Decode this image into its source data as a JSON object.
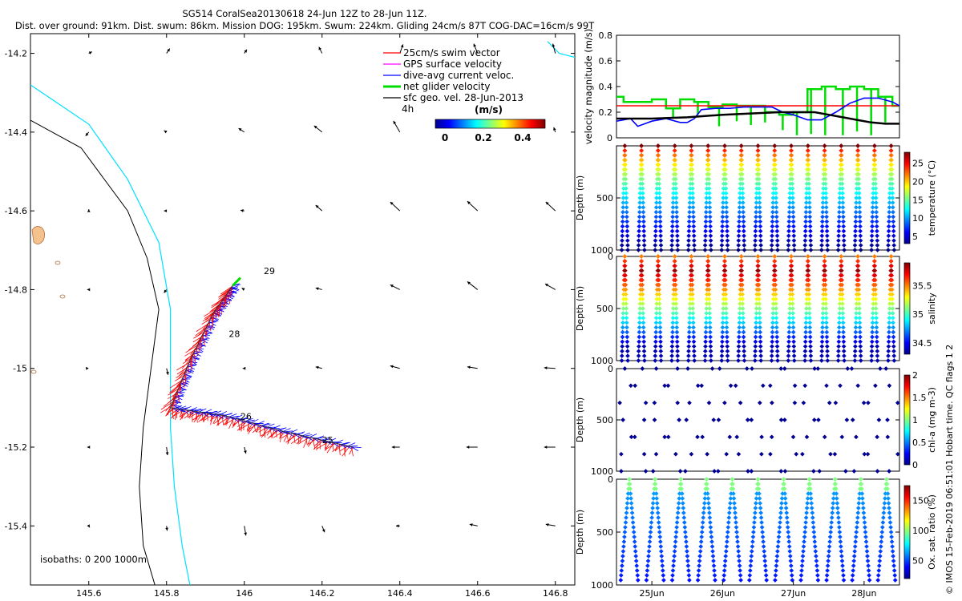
{
  "header": {
    "title": "SG514 CoralSea20130618 24-Jun 12Z to 28-Jun 11Z.",
    "subtitle": "Dist. over ground: 91km. Dist. swum: 86km. Mission DOG: 195km. Swum: 224km. Gliding 24cm/s 87T COG-DAC=16cm/s 99T"
  },
  "credit": "© IMOS 15-Feb-2019 06:51:01 Hobart time. QC flags 1 2",
  "colors": {
    "swim": "#ff0000",
    "gps": "#ff00ff",
    "dac": "#0000ff",
    "net": "#00dd00",
    "geo": "#000000",
    "coast": "#00e0ff"
  },
  "chart_data": [
    {
      "type": "scatter",
      "name": "track-map",
      "xlim": [
        145.45,
        146.85
      ],
      "ylim": [
        -15.55,
        -14.15
      ],
      "x_ticks": [
        145.6,
        145.8,
        146,
        146.2,
        146.4,
        146.6,
        146.8
      ],
      "x_tick_labels": [
        "145.6",
        "145.8",
        "146",
        "146.2",
        "146.4",
        "146.6",
        "146.8"
      ],
      "y_ticks": [
        -14.2,
        -14.4,
        -14.6,
        -14.8,
        -15.0,
        -15.2,
        -15.4
      ],
      "y_tick_labels": [
        "-14.2",
        "-14.4",
        "-14.6",
        "-14.8",
        "-15",
        "-15.2",
        "-15.4"
      ],
      "legend": {
        "placement": "top-right",
        "entries": [
          "25cm/s swim vector",
          "GPS surface velocity",
          "dive-avg current veloc.",
          "net glider velocity",
          "sfc geo. vel. 28-Jun-2013"
        ],
        "time_label": "4h",
        "colorbar_title": "(m/s)",
        "colorbar_ticks": [
          "0",
          "0.2",
          "0.4"
        ]
      },
      "isobath_label": "isobaths: 0   200  1000m",
      "day_labels": [
        {
          "text": "29",
          "lon": 146.05,
          "lat": -14.76
        },
        {
          "text": "28",
          "lon": 145.96,
          "lat": -14.92
        },
        {
          "text": "26",
          "lon": 145.99,
          "lat": -15.13
        },
        {
          "text": "25",
          "lon": 146.2,
          "lat": -15.19
        }
      ],
      "track": [
        [
          146.28,
          -15.2
        ],
        [
          146.1,
          -15.16
        ],
        [
          145.95,
          -15.12
        ],
        [
          145.81,
          -15.1
        ],
        [
          145.86,
          -14.98
        ],
        [
          145.92,
          -14.86
        ],
        [
          145.97,
          -14.79
        ]
      ],
      "net_velocity_tip": [
        [
          145.97,
          -14.79
        ],
        [
          145.99,
          -14.77
        ]
      ],
      "coast_1000m": [
        [
          145.45,
          -14.37
        ],
        [
          145.58,
          -14.44
        ],
        [
          145.7,
          -14.6
        ],
        [
          145.75,
          -14.72
        ],
        [
          145.78,
          -14.85
        ],
        [
          145.76,
          -15.0
        ],
        [
          145.74,
          -15.15
        ],
        [
          145.73,
          -15.3
        ],
        [
          145.74,
          -15.45
        ],
        [
          145.77,
          -15.55
        ]
      ],
      "coast_0m": [
        [
          145.45,
          -14.28
        ],
        [
          145.6,
          -14.38
        ],
        [
          145.7,
          -14.52
        ],
        [
          145.78,
          -14.68
        ],
        [
          145.81,
          -14.85
        ],
        [
          145.81,
          -15.0
        ],
        [
          145.81,
          -15.15
        ],
        [
          145.82,
          -15.3
        ],
        [
          145.84,
          -15.45
        ],
        [
          145.86,
          -15.55
        ]
      ],
      "coast_ne": [
        [
          146.78,
          -14.17
        ],
        [
          146.81,
          -14.2
        ],
        [
          146.85,
          -14.21
        ]
      ],
      "geo_vectors": [
        {
          "lon": 145.6,
          "lat": -14.2,
          "u": 0.1,
          "v": 0.05
        },
        {
          "lon": 145.8,
          "lat": -14.2,
          "u": 0.1,
          "v": 0.15
        },
        {
          "lon": 146.0,
          "lat": -14.2,
          "u": 0.08,
          "v": 0.12
        },
        {
          "lon": 146.2,
          "lat": -14.2,
          "u": -0.1,
          "v": 0.2
        },
        {
          "lon": 146.4,
          "lat": -14.2,
          "u": 0.1,
          "v": 0.28
        },
        {
          "lon": 146.6,
          "lat": -14.2,
          "u": -0.12,
          "v": 0.3
        },
        {
          "lon": 146.8,
          "lat": -14.2,
          "u": -0.08,
          "v": 0.3
        },
        {
          "lon": 145.6,
          "lat": -14.4,
          "u": -0.1,
          "v": -0.12
        },
        {
          "lon": 145.8,
          "lat": -14.4,
          "u": -0.08,
          "v": 0.05
        },
        {
          "lon": 146.0,
          "lat": -14.4,
          "u": -0.18,
          "v": 0.12
        },
        {
          "lon": 146.2,
          "lat": -14.4,
          "u": -0.25,
          "v": 0.2
        },
        {
          "lon": 146.4,
          "lat": -14.4,
          "u": -0.2,
          "v": 0.35
        },
        {
          "lon": 146.8,
          "lat": -14.4,
          "u": -0.05,
          "v": 0.15
        },
        {
          "lon": 145.6,
          "lat": -14.6,
          "u": 0.0,
          "v": 0.05
        },
        {
          "lon": 145.8,
          "lat": -14.6,
          "u": -0.08,
          "v": 0.0
        },
        {
          "lon": 146.0,
          "lat": -14.6,
          "u": -0.12,
          "v": 0.02
        },
        {
          "lon": 146.2,
          "lat": -14.6,
          "u": -0.2,
          "v": 0.18
        },
        {
          "lon": 146.4,
          "lat": -14.6,
          "u": -0.3,
          "v": 0.28
        },
        {
          "lon": 146.6,
          "lat": -14.6,
          "u": -0.32,
          "v": 0.3
        },
        {
          "lon": 146.8,
          "lat": -14.6,
          "u": -0.3,
          "v": 0.28
        },
        {
          "lon": 145.6,
          "lat": -14.8,
          "u": -0.05,
          "v": 0.0
        },
        {
          "lon": 145.8,
          "lat": -14.8,
          "u": -0.08,
          "v": -0.1
        },
        {
          "lon": 146.0,
          "lat": -14.8,
          "u": -0.08,
          "v": 0.05
        },
        {
          "lon": 146.2,
          "lat": -14.8,
          "u": -0.2,
          "v": 0.05
        },
        {
          "lon": 146.4,
          "lat": -14.8,
          "u": -0.3,
          "v": 0.15
        },
        {
          "lon": 146.6,
          "lat": -14.8,
          "u": -0.32,
          "v": 0.25
        },
        {
          "lon": 146.8,
          "lat": -14.8,
          "u": -0.32,
          "v": 0.18
        },
        {
          "lon": 145.6,
          "lat": -15.0,
          "u": 0.0,
          "v": 0.0
        },
        {
          "lon": 145.8,
          "lat": -15.0,
          "u": 0.05,
          "v": -0.2
        },
        {
          "lon": 146.0,
          "lat": -15.0,
          "u": -0.05,
          "v": 0.0
        },
        {
          "lon": 146.2,
          "lat": -15.0,
          "u": -0.2,
          "v": 0.05
        },
        {
          "lon": 146.4,
          "lat": -15.0,
          "u": -0.3,
          "v": 0.08
        },
        {
          "lon": 146.6,
          "lat": -15.0,
          "u": -0.32,
          "v": 0.05
        },
        {
          "lon": 146.8,
          "lat": -15.0,
          "u": -0.35,
          "v": 0.02
        },
        {
          "lon": 145.6,
          "lat": -15.2,
          "u": -0.05,
          "v": 0.0
        },
        {
          "lon": 145.8,
          "lat": -15.2,
          "u": 0.03,
          "v": -0.25
        },
        {
          "lon": 146.0,
          "lat": -15.2,
          "u": 0.05,
          "v": -0.2
        },
        {
          "lon": 146.4,
          "lat": -15.2,
          "u": -0.25,
          "v": 0.0
        },
        {
          "lon": 146.6,
          "lat": -15.2,
          "u": -0.35,
          "v": 0.0
        },
        {
          "lon": 146.8,
          "lat": -15.2,
          "u": -0.35,
          "v": 0.0
        },
        {
          "lon": 145.6,
          "lat": -15.4,
          "u": 0.03,
          "v": -0.05
        },
        {
          "lon": 145.8,
          "lat": -15.4,
          "u": 0.02,
          "v": -0.15
        },
        {
          "lon": 146.0,
          "lat": -15.4,
          "u": 0.05,
          "v": -0.3
        },
        {
          "lon": 146.2,
          "lat": -15.4,
          "u": 0.08,
          "v": -0.2
        },
        {
          "lon": 146.4,
          "lat": -15.4,
          "u": -0.12,
          "v": 0.0
        },
        {
          "lon": 146.6,
          "lat": -15.4,
          "u": -0.25,
          "v": 0.05
        },
        {
          "lon": 146.8,
          "lat": -15.4,
          "u": -0.3,
          "v": 0.05
        }
      ]
    },
    {
      "type": "line",
      "name": "velocity-magnitude",
      "ylabel": "velocity magnitude (m/s)",
      "xlim": [
        24.5,
        28.5
      ],
      "ylim": [
        0,
        0.8
      ],
      "y_ticks": [
        0,
        0.2,
        0.4,
        0.6,
        0.8
      ],
      "y_tick_labels": [
        "0",
        "0.2",
        "0.4",
        "0.6",
        "0.8"
      ],
      "series": [
        {
          "key": "swim_25cm",
          "color": "#ff0000",
          "x": [
            24.5,
            28.5
          ],
          "y": [
            0.25,
            0.25
          ]
        },
        {
          "key": "dac",
          "color": "#0000ff",
          "x": [
            24.5,
            24.7,
            24.8,
            25.0,
            25.2,
            25.4,
            25.5,
            25.6,
            25.7,
            25.9,
            26.1,
            26.3,
            26.5,
            26.7,
            26.85,
            27.0,
            27.2,
            27.4,
            27.6,
            27.8,
            28.0,
            28.2,
            28.4,
            28.5
          ],
          "y": [
            0.13,
            0.15,
            0.09,
            0.13,
            0.15,
            0.12,
            0.12,
            0.15,
            0.22,
            0.23,
            0.23,
            0.24,
            0.24,
            0.24,
            0.2,
            0.18,
            0.14,
            0.14,
            0.2,
            0.27,
            0.31,
            0.31,
            0.28,
            0.25
          ]
        },
        {
          "key": "geo",
          "color": "#000000",
          "x": [
            24.5,
            25.0,
            25.5,
            26.0,
            26.4,
            26.8,
            27.0,
            27.1,
            27.3,
            27.5,
            27.7,
            27.9,
            28.1,
            28.3,
            28.5
          ],
          "y": [
            0.15,
            0.15,
            0.16,
            0.18,
            0.19,
            0.2,
            0.2,
            0.2,
            0.2,
            0.18,
            0.16,
            0.14,
            0.12,
            0.11,
            0.11
          ]
        }
      ],
      "net_steps": [
        [
          24.5,
          24.6,
          0.32
        ],
        [
          24.6,
          24.8,
          0.28
        ],
        [
          24.8,
          25.0,
          0.28
        ],
        [
          25.0,
          25.2,
          0.3
        ],
        [
          25.2,
          25.4,
          0.23
        ],
        [
          25.4,
          25.6,
          0.3
        ],
        [
          25.6,
          25.8,
          0.28
        ],
        [
          25.8,
          26.0,
          0.24
        ],
        [
          26.0,
          26.2,
          0.26
        ],
        [
          26.2,
          26.4,
          0.25
        ],
        [
          26.4,
          26.6,
          0.25
        ],
        [
          26.6,
          26.8,
          0.2
        ],
        [
          26.8,
          27.0,
          0.18
        ],
        [
          27.0,
          27.2,
          0.2
        ],
        [
          27.2,
          27.4,
          0.38
        ],
        [
          27.4,
          27.6,
          0.4
        ],
        [
          27.6,
          27.8,
          0.38
        ],
        [
          27.8,
          28.0,
          0.4
        ],
        [
          28.0,
          28.2,
          0.38
        ],
        [
          28.2,
          28.4,
          0.32
        ],
        [
          28.4,
          28.5,
          0.25
        ]
      ],
      "net_dips": [
        [
          25.3,
          0.16
        ],
        [
          25.65,
          0.18
        ],
        [
          25.95,
          0.09
        ],
        [
          26.2,
          0.13
        ],
        [
          26.4,
          0.1
        ],
        [
          26.6,
          0.12
        ],
        [
          26.85,
          0.06
        ],
        [
          27.05,
          0.02
        ],
        [
          27.25,
          0.03
        ],
        [
          27.45,
          0.02
        ],
        [
          27.7,
          0.02
        ],
        [
          27.9,
          0.05
        ],
        [
          28.1,
          0.02
        ],
        [
          28.3,
          0.12
        ]
      ]
    },
    {
      "type": "scatter",
      "name": "temperature-section",
      "ylabel": "Depth (m)",
      "colorbar_label": "temperature (°C)",
      "y_ticks": [
        0,
        500,
        1000
      ],
      "y_tick_labels": [
        "",
        "500",
        "1000"
      ],
      "clim": [
        3,
        28
      ],
      "colorbar_ticks": [
        5,
        10,
        15,
        20,
        25
      ],
      "colorbar_tick_labels": [
        "5",
        "10",
        "15",
        "20",
        "25"
      ],
      "dive_count": 17
    },
    {
      "type": "scatter",
      "name": "salinity-section",
      "ylabel": "Depth (m)",
      "colorbar_label": "salinity",
      "y_ticks": [
        0,
        500,
        1000
      ],
      "y_tick_labels": [
        "0",
        "500",
        "1000"
      ],
      "clim": [
        34.3,
        35.9
      ],
      "colorbar_ticks": [
        34.5,
        35,
        35.5
      ],
      "colorbar_tick_labels": [
        "34.5",
        "35",
        "35.5"
      ],
      "dive_count": 17
    },
    {
      "type": "scatter",
      "name": "chla-section",
      "ylabel": "Depth (m)",
      "colorbar_label": "chl-a (mg m-3)",
      "y_ticks": [
        0,
        500,
        1000
      ],
      "y_tick_labels": [
        "0",
        "500",
        "1000"
      ],
      "clim": [
        0,
        2
      ],
      "colorbar_ticks": [
        0,
        0.5,
        1,
        1.5,
        2
      ],
      "colorbar_tick_labels": [
        "0",
        "0.5",
        "1",
        "1.5",
        "2"
      ],
      "dive_count": 17
    },
    {
      "type": "scatter",
      "name": "oxygen-section",
      "ylabel": "Depth (m)",
      "colorbar_label": "Ox. sat. ratio (%)",
      "y_ticks": [
        0,
        500,
        1000
      ],
      "y_tick_labels": [
        "0",
        "500",
        "1000"
      ],
      "clim": [
        20,
        175
      ],
      "colorbar_ticks": [
        50,
        100,
        150
      ],
      "colorbar_tick_labels": [
        "50",
        "100",
        "150"
      ],
      "x_ticks": [
        25,
        26,
        27,
        28
      ],
      "x_tick_labels": [
        "25Jun",
        "26Jun",
        "27Jun",
        "28Jun"
      ],
      "dive_count": 11
    }
  ]
}
